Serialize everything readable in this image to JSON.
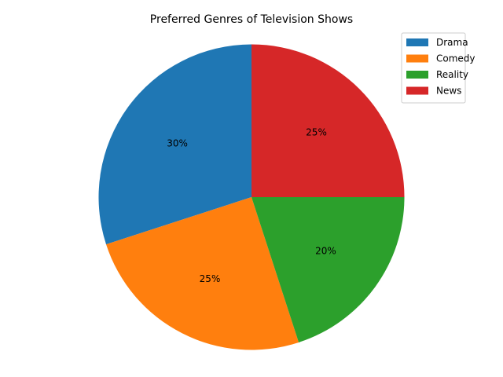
{
  "chart_data": {
    "type": "pie",
    "title": "Preferred Genres of Television Shows",
    "categories": [
      "Drama",
      "Comedy",
      "Reality",
      "News"
    ],
    "values": [
      30,
      25,
      20,
      25
    ],
    "labels": [
      "30%",
      "25%",
      "20%",
      "25%"
    ],
    "colors": [
      "#1f77b4",
      "#ff7f0e",
      "#2ca02c",
      "#d62728"
    ],
    "start_angle_deg": 90,
    "direction": "counterclockwise",
    "legend": {
      "placement": "top-right",
      "entries": [
        "Drama",
        "Comedy",
        "Reality",
        "News"
      ]
    }
  }
}
